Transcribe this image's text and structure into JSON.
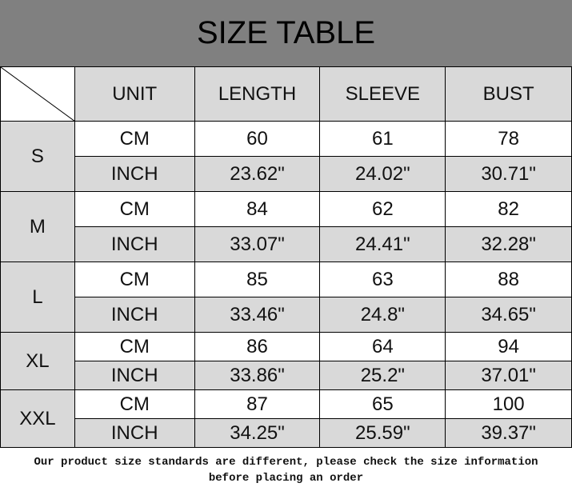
{
  "title": "SIZE TABLE",
  "headers": [
    "UNIT",
    "LENGTH",
    "SLEEVE",
    "BUST"
  ],
  "sizes": [
    {
      "size": "S",
      "rows": [
        {
          "unit": "CM",
          "length": "60",
          "sleeve": "61",
          "bust": "78"
        },
        {
          "unit": "INCH",
          "length": "23.62\"",
          "sleeve": "24.02\"",
          "bust": "30.71\""
        }
      ]
    },
    {
      "size": "M",
      "rows": [
        {
          "unit": "CM",
          "length": "84",
          "sleeve": "62",
          "bust": "82"
        },
        {
          "unit": "INCH",
          "length": "33.07\"",
          "sleeve": "24.41\"",
          "bust": "32.28\""
        }
      ]
    },
    {
      "size": "L",
      "rows": [
        {
          "unit": "CM",
          "length": "85",
          "sleeve": "63",
          "bust": "88"
        },
        {
          "unit": "INCH",
          "length": "33.46\"",
          "sleeve": "24.8\"",
          "bust": "34.65\""
        }
      ]
    },
    {
      "size": "XL",
      "rows": [
        {
          "unit": "CM",
          "length": "86",
          "sleeve": "64",
          "bust": "94"
        },
        {
          "unit": "INCH",
          "length": "33.86\"",
          "sleeve": "25.2\"",
          "bust": "37.01\""
        }
      ]
    },
    {
      "size": "XXL",
      "rows": [
        {
          "unit": "CM",
          "length": "87",
          "sleeve": "65",
          "bust": "100"
        },
        {
          "unit": "INCH",
          "length": "34.25\"",
          "sleeve": "25.59\"",
          "bust": "39.37\""
        }
      ]
    }
  ],
  "footer": {
    "line1": "Our product size standards are different, please check the size information",
    "line2": "before placing an order"
  },
  "colors": {
    "title_bg": "#808080",
    "cell_gray": "#d9d9d9"
  }
}
